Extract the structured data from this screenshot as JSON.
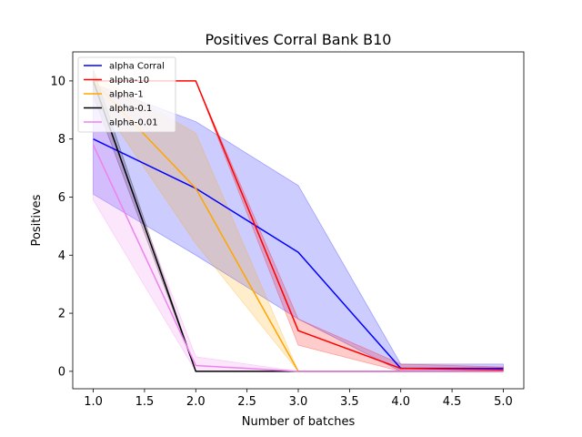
{
  "chart_data": {
    "type": "line",
    "title": "Positives Corral Bank B10",
    "xlabel": "Number of batches",
    "ylabel": "Positives",
    "xlim": [
      0.8,
      5.2
    ],
    "ylim": [
      -0.6,
      11.0
    ],
    "xticks": [
      1.0,
      1.5,
      2.0,
      2.5,
      3.0,
      3.5,
      4.0,
      4.5,
      5.0
    ],
    "xtick_labels": [
      "1.0",
      "1.5",
      "2.0",
      "2.5",
      "3.0",
      "3.5",
      "4.0",
      "4.5",
      "5.0"
    ],
    "yticks": [
      0,
      2,
      4,
      6,
      8,
      10
    ],
    "ytick_labels": [
      "0",
      "2",
      "4",
      "6",
      "8",
      "10"
    ],
    "grid": false,
    "legend_position": "top-left",
    "x": [
      1,
      2,
      3,
      4,
      5
    ],
    "series": [
      {
        "name": "alpha Corral",
        "color": "#0000ff",
        "values": [
          8.0,
          6.3,
          4.1,
          0.1,
          0.1
        ],
        "lower": [
          6.1,
          4.0,
          1.8,
          0.0,
          0.0
        ],
        "upper": [
          9.9,
          8.6,
          6.4,
          0.25,
          0.25
        ]
      },
      {
        "name": "alpha-10",
        "color": "#ff0000",
        "values": [
          10.0,
          10.0,
          1.4,
          0.1,
          0.05
        ],
        "lower": [
          10.0,
          10.0,
          0.9,
          0.0,
          0.0
        ],
        "upper": [
          10.0,
          10.0,
          1.8,
          0.25,
          0.15
        ]
      },
      {
        "name": "alpha-1",
        "color": "#ffa500",
        "values": [
          10.0,
          6.3,
          0.0,
          0.0,
          0.0
        ],
        "lower": [
          9.6,
          4.4,
          0.0,
          0.0,
          0.0
        ],
        "upper": [
          10.2,
          8.2,
          0.0,
          0.0,
          0.0
        ]
      },
      {
        "name": "alpha-0.1",
        "color": "#000000",
        "values": [
          10.0,
          0.0,
          0.0,
          0.0,
          0.0
        ],
        "lower": [
          9.5,
          0.0,
          0.0,
          0.0,
          0.0
        ],
        "upper": [
          10.4,
          0.0,
          0.0,
          0.0,
          0.0
        ]
      },
      {
        "name": "alpha-0.01",
        "color": "#ee82ee",
        "values": [
          7.8,
          0.2,
          0.0,
          0.0,
          0.0
        ],
        "lower": [
          5.9,
          0.0,
          0.0,
          0.0,
          0.0
        ],
        "upper": [
          9.7,
          0.5,
          0.0,
          0.0,
          0.0
        ]
      }
    ]
  }
}
